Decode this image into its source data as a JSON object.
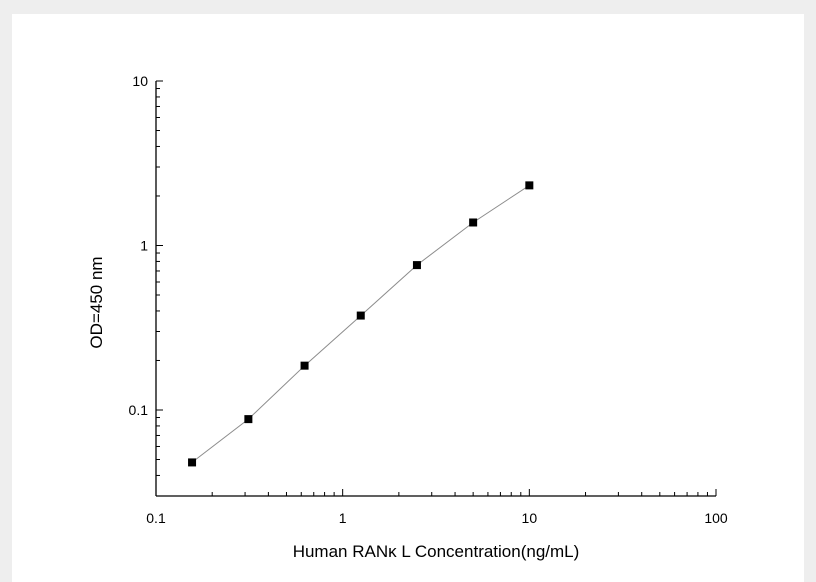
{
  "chart_data": {
    "type": "scatter",
    "title": "",
    "xlabel": "Human RANκ L  Concentration(ng/mL)",
    "ylabel": "OD=450 nm",
    "xscale": "log",
    "yscale": "log",
    "xlim": [
      0.1,
      100
    ],
    "ylim": [
      0.03,
      10
    ],
    "grid": false,
    "legend": "none",
    "x_ticks": [
      0.1,
      1,
      10,
      100
    ],
    "x_tick_labels": [
      "0.1",
      "1",
      "10",
      "100"
    ],
    "y_ticks": [
      0.1,
      1,
      10
    ],
    "y_tick_labels": [
      "0.1",
      "1",
      "10"
    ],
    "series": [
      {
        "x": [
          0.156,
          0.3125,
          0.625,
          1.25,
          2.5,
          5,
          10
        ],
        "y": [
          0.048,
          0.088,
          0.186,
          0.375,
          0.76,
          1.38,
          2.32
        ],
        "marker": "square",
        "line": "connected",
        "marker_color": "#000000",
        "line_color": "#8c8c8c"
      }
    ]
  }
}
